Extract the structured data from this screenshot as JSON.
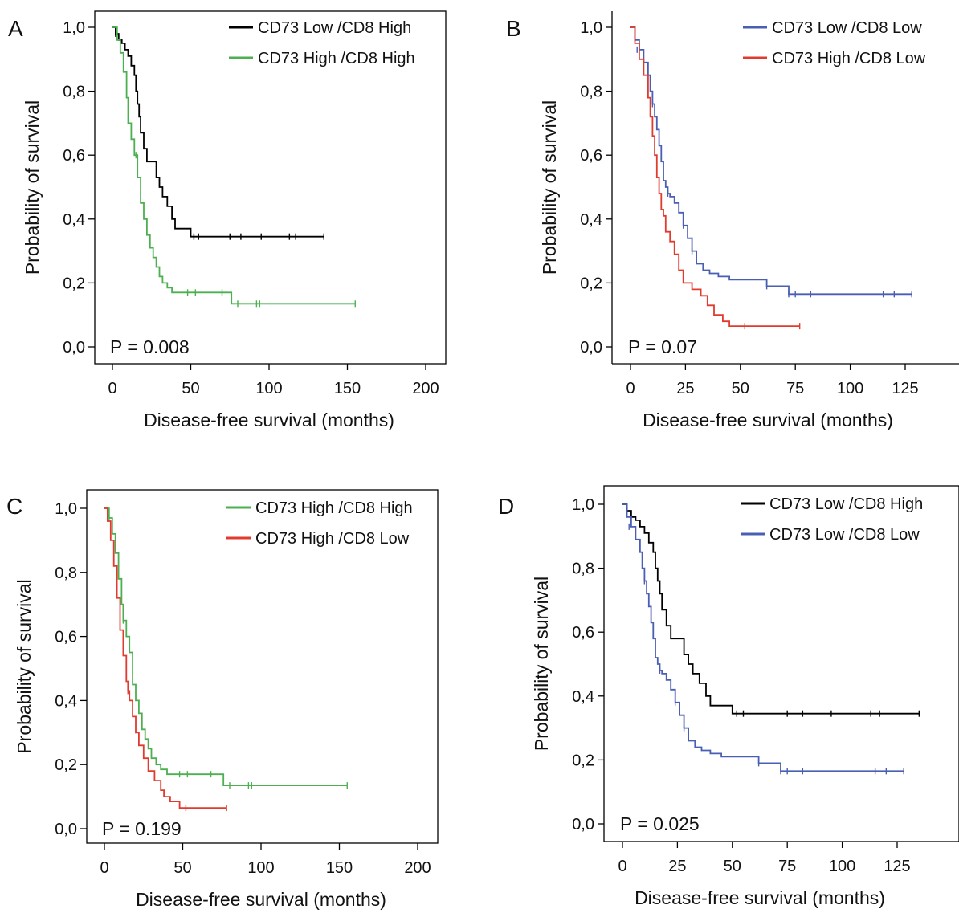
{
  "chart_data": [
    {
      "type": "line",
      "panel_label": "A",
      "xlabel": "Disease-free survival (months)",
      "ylabel": "Probability of survival",
      "xlim": [
        0,
        200
      ],
      "ylim": [
        0,
        1
      ],
      "x_ticks": [
        0,
        50,
        100,
        150,
        200
      ],
      "y_ticks": [
        "0,0",
        "0,2",
        "0,4",
        "0,6",
        "0,8",
        "1,0"
      ],
      "annotation": "P = 0.008",
      "legend_position": "top-right",
      "series": [
        {
          "name": "CD73 Low /CD8 High",
          "color": "#000000",
          "x": [
            0,
            2,
            4,
            6,
            8,
            10,
            12,
            14,
            15,
            16,
            17,
            18,
            20,
            22,
            26,
            28,
            30,
            32,
            35,
            38,
            40,
            45,
            50,
            135
          ],
          "y": [
            1.0,
            0.98,
            0.96,
            0.95,
            0.93,
            0.91,
            0.88,
            0.85,
            0.8,
            0.76,
            0.72,
            0.67,
            0.62,
            0.58,
            0.58,
            0.53,
            0.5,
            0.47,
            0.44,
            0.4,
            0.37,
            0.37,
            0.345,
            0.345
          ],
          "censored": [
            [
              2,
              0.98
            ],
            [
              52,
              0.345
            ],
            [
              55,
              0.345
            ],
            [
              75,
              0.345
            ],
            [
              82,
              0.345
            ],
            [
              95,
              0.345
            ],
            [
              113,
              0.345
            ],
            [
              117,
              0.345
            ],
            [
              135,
              0.345
            ]
          ]
        },
        {
          "name": "CD73 High /CD8 High",
          "color": "#4caf50",
          "x": [
            0,
            3,
            5,
            7,
            9,
            10,
            12,
            14,
            16,
            18,
            20,
            22,
            24,
            26,
            28,
            30,
            32,
            35,
            38,
            50,
            60,
            70,
            76,
            155
          ],
          "y": [
            1.0,
            0.96,
            0.92,
            0.86,
            0.78,
            0.7,
            0.65,
            0.6,
            0.53,
            0.45,
            0.4,
            0.35,
            0.31,
            0.28,
            0.25,
            0.22,
            0.2,
            0.185,
            0.17,
            0.17,
            0.17,
            0.17,
            0.135,
            0.135
          ],
          "censored": [
            [
              15,
              0.6
            ],
            [
              48,
              0.17
            ],
            [
              53,
              0.17
            ],
            [
              70,
              0.17
            ],
            [
              80,
              0.135
            ],
            [
              92,
              0.135
            ],
            [
              94,
              0.135
            ],
            [
              155,
              0.135
            ]
          ]
        }
      ]
    },
    {
      "type": "line",
      "panel_label": "B",
      "xlabel": "Disease-free survival (months)",
      "ylabel": "Probability of survival",
      "xlim": [
        0,
        137
      ],
      "ylim": [
        0,
        1
      ],
      "x_ticks": [
        0,
        25,
        50,
        75,
        100,
        125
      ],
      "y_ticks": [
        "0,0",
        "0,2",
        "0,4",
        "0,6",
        "0,8",
        "1,0"
      ],
      "annotation": "P = 0.07",
      "legend_position": "top-right",
      "series": [
        {
          "name": "CD73 Low /CD8 Low",
          "color": "#4a5fb4",
          "x": [
            0,
            2,
            4,
            6,
            8,
            9,
            10,
            11,
            12,
            13,
            14,
            15,
            16,
            17,
            18,
            20,
            22,
            24,
            26,
            28,
            30,
            33,
            36,
            40,
            45,
            50,
            62,
            72,
            128
          ],
          "y": [
            1.0,
            0.96,
            0.93,
            0.89,
            0.85,
            0.8,
            0.76,
            0.72,
            0.68,
            0.63,
            0.58,
            0.52,
            0.5,
            0.48,
            0.47,
            0.45,
            0.42,
            0.38,
            0.34,
            0.3,
            0.26,
            0.24,
            0.23,
            0.22,
            0.21,
            0.21,
            0.19,
            0.165,
            0.165
          ],
          "censored": [
            [
              3,
              0.93
            ],
            [
              10,
              0.76
            ],
            [
              17,
              0.48
            ],
            [
              24,
              0.38
            ],
            [
              28,
              0.3
            ],
            [
              62,
              0.19
            ],
            [
              72,
              0.165
            ],
            [
              75,
              0.165
            ],
            [
              82,
              0.165
            ],
            [
              115,
              0.165
            ],
            [
              120,
              0.165
            ],
            [
              128,
              0.165
            ]
          ]
        },
        {
          "name": "CD73 High /CD8 Low",
          "color": "#e03b2e",
          "x": [
            0,
            2,
            4,
            6,
            8,
            9,
            10,
            11,
            12,
            13,
            14,
            15,
            16,
            18,
            20,
            22,
            24,
            28,
            32,
            35,
            38,
            42,
            45,
            50,
            77
          ],
          "y": [
            1.0,
            0.95,
            0.9,
            0.85,
            0.78,
            0.72,
            0.66,
            0.6,
            0.53,
            0.48,
            0.43,
            0.41,
            0.36,
            0.33,
            0.29,
            0.24,
            0.2,
            0.18,
            0.16,
            0.13,
            0.1,
            0.08,
            0.065,
            0.065,
            0.065
          ],
          "censored": [
            [
              52,
              0.065
            ],
            [
              77,
              0.065
            ]
          ]
        }
      ]
    },
    {
      "type": "line",
      "panel_label": "C",
      "xlabel": "Disease-free survival (months)",
      "ylabel": "Probability of survival",
      "xlim": [
        0,
        200
      ],
      "ylim": [
        0,
        1
      ],
      "x_ticks": [
        0,
        50,
        100,
        150,
        200
      ],
      "y_ticks": [
        "0,0",
        "0,2",
        "0,4",
        "0,6",
        "0,8",
        "1,0"
      ],
      "annotation": "P = 0.199",
      "legend_position": "top-right",
      "series": [
        {
          "name": "CD73 High /CD8 High",
          "color": "#4caf50",
          "x": [
            0,
            3,
            5,
            7,
            9,
            11,
            12,
            14,
            16,
            18,
            20,
            22,
            24,
            26,
            28,
            30,
            33,
            36,
            40,
            50,
            60,
            70,
            76,
            155
          ],
          "y": [
            1.0,
            0.97,
            0.92,
            0.86,
            0.78,
            0.7,
            0.65,
            0.6,
            0.55,
            0.45,
            0.4,
            0.36,
            0.31,
            0.28,
            0.25,
            0.22,
            0.2,
            0.185,
            0.17,
            0.17,
            0.17,
            0.17,
            0.135,
            0.135
          ],
          "censored": [
            [
              3,
              0.97
            ],
            [
              12,
              0.65
            ],
            [
              48,
              0.17
            ],
            [
              53,
              0.17
            ],
            [
              68,
              0.17
            ],
            [
              80,
              0.135
            ],
            [
              92,
              0.135
            ],
            [
              94,
              0.135
            ],
            [
              155,
              0.135
            ]
          ]
        },
        {
          "name": "CD73 High /CD8 Low",
          "color": "#e03b2e",
          "x": [
            0,
            2,
            4,
            6,
            8,
            10,
            12,
            14,
            15,
            16,
            18,
            20,
            22,
            25,
            28,
            32,
            36,
            38,
            42,
            48,
            78
          ],
          "y": [
            1.0,
            0.96,
            0.9,
            0.82,
            0.72,
            0.62,
            0.54,
            0.46,
            0.43,
            0.4,
            0.35,
            0.3,
            0.26,
            0.22,
            0.18,
            0.15,
            0.12,
            0.1,
            0.085,
            0.065,
            0.065
          ],
          "censored": [
            [
              15,
              0.43
            ],
            [
              52,
              0.065
            ],
            [
              78,
              0.065
            ]
          ]
        }
      ]
    },
    {
      "type": "line",
      "panel_label": "D",
      "xlabel": "Disease-free survival (months)",
      "ylabel": "Probability of survival",
      "xlim": [
        0,
        137
      ],
      "ylim": [
        0,
        1
      ],
      "x_ticks": [
        0,
        25,
        50,
        75,
        100,
        125
      ],
      "y_ticks": [
        "0,0",
        "0,2",
        "0,4",
        "0,6",
        "0,8",
        "1,0"
      ],
      "annotation": "P = 0.025",
      "legend_position": "top-right",
      "series": [
        {
          "name": "CD73 Low /CD8 High",
          "color": "#000000",
          "x": [
            0,
            2,
            4,
            6,
            8,
            10,
            12,
            14,
            15,
            16,
            17,
            18,
            20,
            22,
            26,
            28,
            30,
            32,
            35,
            38,
            40,
            45,
            50,
            135
          ],
          "y": [
            1.0,
            0.98,
            0.96,
            0.95,
            0.93,
            0.91,
            0.88,
            0.85,
            0.8,
            0.76,
            0.72,
            0.67,
            0.62,
            0.58,
            0.58,
            0.53,
            0.5,
            0.47,
            0.44,
            0.4,
            0.37,
            0.37,
            0.345,
            0.345
          ],
          "censored": [
            [
              2,
              0.98
            ],
            [
              52,
              0.345
            ],
            [
              55,
              0.345
            ],
            [
              75,
              0.345
            ],
            [
              82,
              0.345
            ],
            [
              95,
              0.345
            ],
            [
              113,
              0.345
            ],
            [
              117,
              0.345
            ],
            [
              135,
              0.345
            ]
          ]
        },
        {
          "name": "CD73 Low /CD8 Low",
          "color": "#4a5fb4",
          "x": [
            0,
            2,
            4,
            6,
            8,
            9,
            10,
            11,
            12,
            13,
            14,
            15,
            16,
            17,
            18,
            20,
            22,
            24,
            26,
            28,
            30,
            33,
            36,
            40,
            45,
            50,
            62,
            72,
            128
          ],
          "y": [
            1.0,
            0.96,
            0.93,
            0.89,
            0.85,
            0.8,
            0.76,
            0.72,
            0.68,
            0.63,
            0.58,
            0.52,
            0.5,
            0.48,
            0.47,
            0.45,
            0.42,
            0.38,
            0.34,
            0.3,
            0.26,
            0.24,
            0.23,
            0.22,
            0.21,
            0.21,
            0.19,
            0.165,
            0.165
          ],
          "censored": [
            [
              3,
              0.93
            ],
            [
              10,
              0.76
            ],
            [
              17,
              0.48
            ],
            [
              24,
              0.38
            ],
            [
              28,
              0.3
            ],
            [
              62,
              0.19
            ],
            [
              72,
              0.165
            ],
            [
              75,
              0.165
            ],
            [
              82,
              0.165
            ],
            [
              115,
              0.165
            ],
            [
              120,
              0.165
            ],
            [
              128,
              0.165
            ]
          ]
        }
      ]
    }
  ]
}
